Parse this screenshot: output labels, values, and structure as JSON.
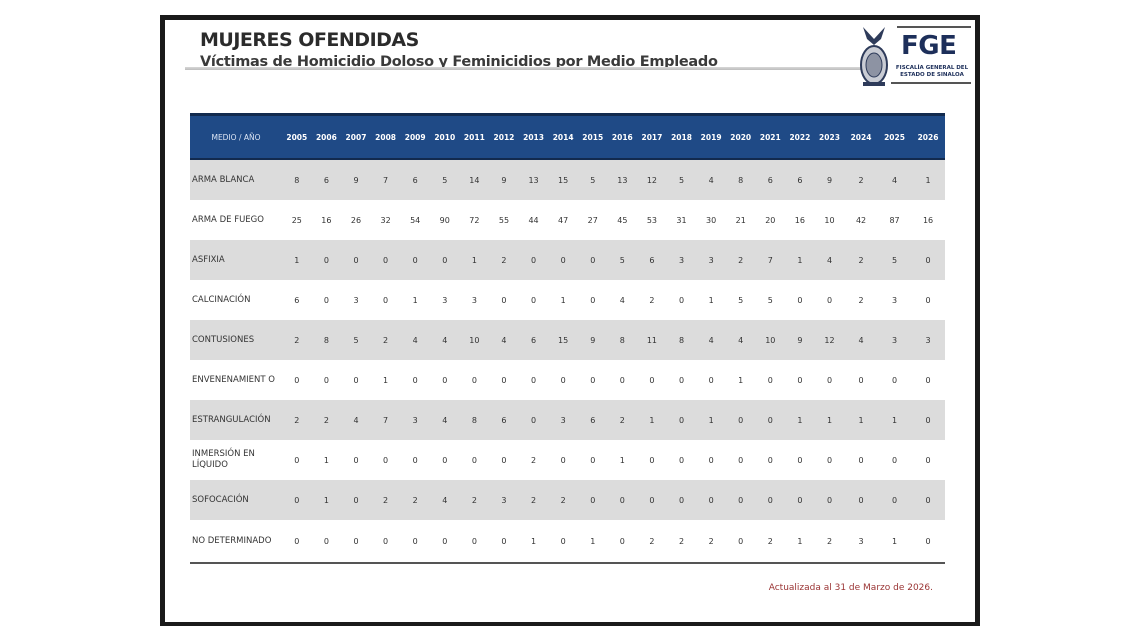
{
  "header": {
    "title": "MUJERES OFENDIDAS",
    "subtitle": "Víctimas de Homicidio Doloso y Feminicidios por Medio Empleado"
  },
  "logo": {
    "acronym": "FGE",
    "org_line1": "FISCALÍA GENERAL DEL",
    "org_line2": "ESTADO DE SINALOA",
    "icon": "state-coat-of-arms-icon"
  },
  "colors": {
    "header_bg": "#1f4a86",
    "stripe": "#dcdcdc",
    "updated_text": "#9a3434"
  },
  "table": {
    "corner": "MEDIO  /  AÑO",
    "years": [
      "2005",
      "2006",
      "2007",
      "2008",
      "2009",
      "2010",
      "2011",
      "2012",
      "2013",
      "2014",
      "2015",
      "2016",
      "2017",
      "2018",
      "2019",
      "2020",
      "2021",
      "2022",
      "2023",
      "2024",
      "2025",
      "2026"
    ],
    "rows": [
      {
        "label": "ARMA BLANCA",
        "values": [
          8,
          6,
          9,
          7,
          6,
          5,
          14,
          9,
          13,
          15,
          5,
          13,
          12,
          5,
          4,
          8,
          6,
          6,
          9,
          2,
          4,
          1
        ]
      },
      {
        "label": "ARMA DE FUEGO",
        "values": [
          25,
          16,
          26,
          32,
          54,
          90,
          72,
          55,
          44,
          47,
          27,
          45,
          53,
          31,
          30,
          21,
          20,
          16,
          10,
          42,
          87,
          16
        ]
      },
      {
        "label": "ASFIXIA",
        "values": [
          1,
          0,
          0,
          0,
          0,
          0,
          1,
          2,
          0,
          0,
          0,
          5,
          6,
          3,
          3,
          2,
          7,
          1,
          4,
          2,
          5,
          0
        ]
      },
      {
        "label": "CALCINACIÓN",
        "values": [
          6,
          0,
          3,
          0,
          1,
          3,
          3,
          0,
          0,
          1,
          0,
          4,
          2,
          0,
          1,
          5,
          5,
          0,
          0,
          2,
          3,
          0
        ]
      },
      {
        "label": "CONTUSIONES",
        "values": [
          2,
          8,
          5,
          2,
          4,
          4,
          10,
          4,
          6,
          15,
          9,
          8,
          11,
          8,
          4,
          4,
          10,
          9,
          12,
          4,
          3,
          3
        ]
      },
      {
        "label": "ENVENENAMIENT O",
        "values": [
          0,
          0,
          0,
          1,
          0,
          0,
          0,
          0,
          0,
          0,
          0,
          0,
          0,
          0,
          0,
          1,
          0,
          0,
          0,
          0,
          0,
          0
        ]
      },
      {
        "label": "ESTRANGULACIÓN",
        "values": [
          2,
          2,
          4,
          7,
          3,
          4,
          8,
          6,
          0,
          3,
          6,
          2,
          1,
          0,
          1,
          0,
          0,
          1,
          1,
          1,
          1,
          0
        ]
      },
      {
        "label": "INMERSIÓN EN LÍQUIDO",
        "values": [
          0,
          1,
          0,
          0,
          0,
          0,
          0,
          0,
          2,
          0,
          0,
          1,
          0,
          0,
          0,
          0,
          0,
          0,
          0,
          0,
          0,
          0
        ]
      },
      {
        "label": "SOFOCACIÓN",
        "values": [
          0,
          1,
          0,
          2,
          2,
          4,
          2,
          3,
          2,
          2,
          0,
          0,
          0,
          0,
          0,
          0,
          0,
          0,
          0,
          0,
          0,
          0
        ]
      },
      {
        "label": "NO DETERMINADO",
        "values": [
          0,
          0,
          0,
          0,
          0,
          0,
          0,
          0,
          1,
          0,
          1,
          0,
          2,
          2,
          2,
          0,
          2,
          1,
          2,
          3,
          1,
          0
        ]
      }
    ]
  },
  "footer": {
    "updated": "Actualizada  al 31 de Marzo de 2026."
  }
}
